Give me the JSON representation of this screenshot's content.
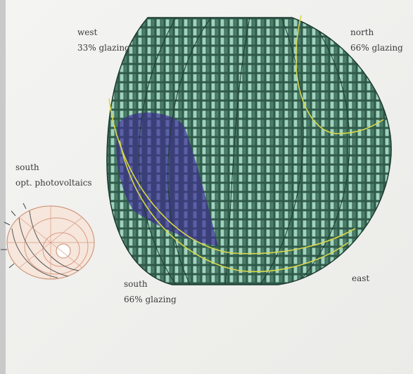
{
  "annotations": [
    {
      "lines": [
        "west",
        "33% glazing"
      ]
    },
    {
      "lines": [
        "north",
        "66% glazing"
      ]
    },
    {
      "lines": [
        "south",
        "opt. photovoltaics"
      ]
    },
    {
      "lines": [
        "south",
        "66% glazing"
      ]
    },
    {
      "lines": [
        "east"
      ]
    }
  ]
}
